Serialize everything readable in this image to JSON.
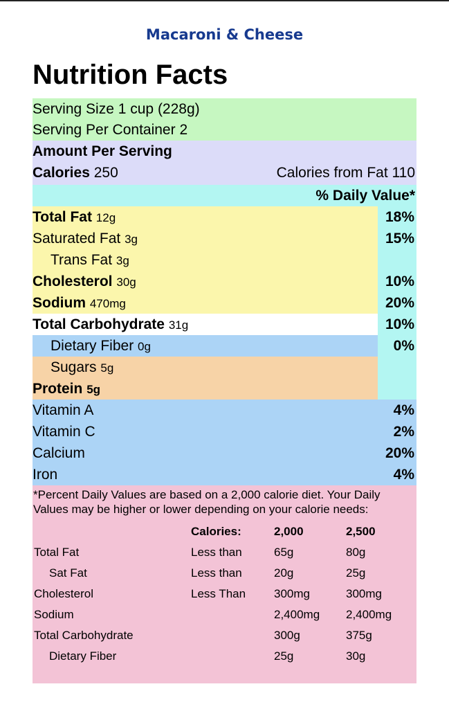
{
  "product_title": "Macaroni & Cheese",
  "heading": "Nutrition Facts",
  "serving": {
    "size_label": "Serving Size",
    "size_value": "1 cup (228g)",
    "container_label": "Serving Per Container",
    "container_value": "2"
  },
  "amount": {
    "label": "Amount Per Serving",
    "calories_label": "Calories",
    "calories_value": "250",
    "fat_calories_label": "Calories from Fat",
    "fat_calories_value": "110"
  },
  "daily_value_header": "% Daily Value*",
  "nutrients": [
    {
      "name": "Total Fat",
      "amount": "12g",
      "dv": "18%"
    },
    {
      "name": "Saturated Fat",
      "amount": "3g",
      "dv": "15%"
    },
    {
      "name": "Trans Fat",
      "amount": "3g",
      "dv": ""
    },
    {
      "name": "Cholesterol",
      "amount": "30g",
      "dv": "10%"
    },
    {
      "name": "Sodium",
      "amount": "470mg",
      "dv": "20%"
    },
    {
      "name": "Total Carbohydrate",
      "amount": "31g",
      "dv": "10%"
    },
    {
      "name": "Dietary Fiber",
      "amount": "0g",
      "dv": "0%"
    },
    {
      "name": "Sugars",
      "amount": "5g",
      "dv": ""
    },
    {
      "name": "Protein",
      "amount": "5g",
      "dv": ""
    }
  ],
  "vitamins": [
    {
      "name": "Vitamin A",
      "dv": "4%"
    },
    {
      "name": "Vitamin C",
      "dv": "2%"
    },
    {
      "name": "Calcium",
      "dv": "20%"
    },
    {
      "name": "Iron",
      "dv": "4%"
    }
  ],
  "footnote": "*Percent Daily Values are based on a 2,000 calorie diet. Your Daily Values may be higher or lower depending on your calorie needs:",
  "reference_table": {
    "header": [
      "",
      "Calories:",
      "2,000",
      "2,500"
    ],
    "rows": [
      [
        "Total Fat",
        "Less than",
        "65g",
        "80g"
      ],
      [
        "Sat Fat",
        "Less than",
        "20g",
        "25g"
      ],
      [
        "Cholesterol",
        "Less Than",
        "300mg",
        "300mg"
      ],
      [
        "Sodium",
        "",
        "2,400mg",
        "2,400mg"
      ],
      [
        "Total Carbohydrate",
        "",
        "300g",
        "375g"
      ],
      [
        "Dietary Fiber",
        "",
        "25g",
        "30g"
      ]
    ]
  },
  "colors": {
    "title": "#173a8f",
    "serving_bg": "#c6f7c1",
    "amount_bg": "#dcdcf9",
    "dv_bg": "#b3f6f2",
    "fat_bg": "#fbf6ac",
    "fiber_bg": "#acd4f6",
    "sugar_bg": "#f7d3a7",
    "footnote_bg": "#f3c3d6"
  }
}
